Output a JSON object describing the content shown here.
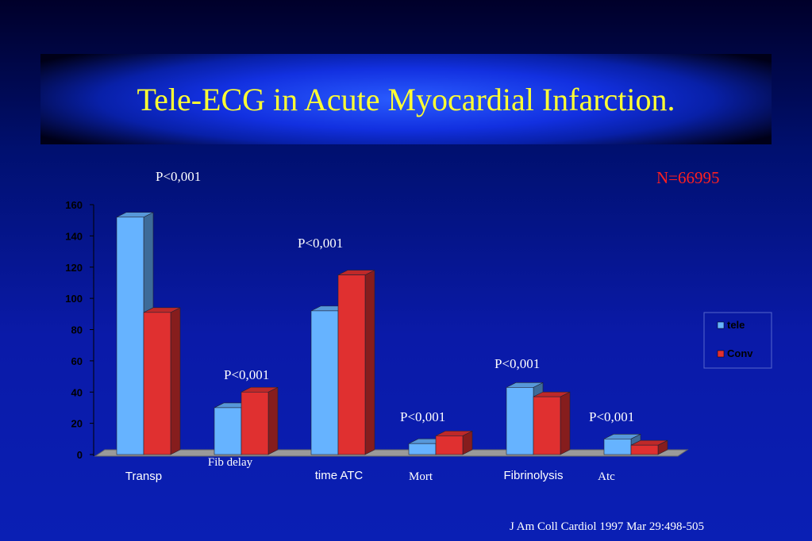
{
  "slide": {
    "title": "Tele-ECG in Acute Myocardial Infarction.",
    "n_label": "N=66995",
    "citation": "J Am Coll Cardiol 1997 Mar 29:498-505"
  },
  "chart_data": {
    "type": "bar",
    "title": "",
    "xlabel": "",
    "ylabel": "",
    "ylim": [
      0,
      160
    ],
    "yticks": [
      0,
      20,
      40,
      60,
      80,
      100,
      120,
      140,
      160
    ],
    "categories": [
      "Transp",
      "Fib  delay",
      "time ATC",
      "Mort",
      "Fibrinolysis",
      "Atc"
    ],
    "series": [
      {
        "name": "tele",
        "values": [
          152,
          30,
          92,
          7,
          43,
          10
        ],
        "color": "#66b3ff"
      },
      {
        "name": "Conv",
        "values": [
          91,
          40,
          115,
          12,
          37,
          6
        ],
        "color": "#e03030"
      }
    ],
    "p_values": [
      "P<0,001",
      "P<0,001",
      "P<0,001",
      "P<0,001",
      "P<0,001",
      "P<0,001"
    ],
    "legend_position": "right",
    "grid": false,
    "style": "3d"
  }
}
